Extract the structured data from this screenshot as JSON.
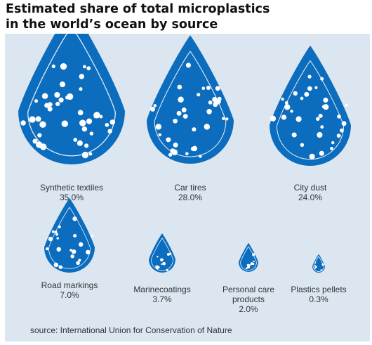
{
  "title_lines": [
    "Estimated share of total microplastics",
    "in the world’s ocean by source"
  ],
  "source": "source: International Union for Conservation of Nature",
  "colors": {
    "drop": "#0c6dbe",
    "panel": "#dbe6f1",
    "dots": "#ffffff",
    "text": "#333333"
  },
  "chart_data": {
    "type": "bubble",
    "mark_shape": "water-drop",
    "unit": "%",
    "series": [
      {
        "label": "Synthetic textiles",
        "label_lines": [
          "Synthetic textiles"
        ],
        "value": 35.0,
        "display": "35.0%"
      },
      {
        "label": "Car tires",
        "label_lines": [
          "Car tires"
        ],
        "value": 28.0,
        "display": "28.0%"
      },
      {
        "label": "City dust",
        "label_lines": [
          "City dust"
        ],
        "value": 24.0,
        "display": "24.0%"
      },
      {
        "label": "Road markings",
        "label_lines": [
          "Road markings"
        ],
        "value": 7.0,
        "display": "7.0%"
      },
      {
        "label": "Marinecoatings",
        "label_lines": [
          "Marinecoatings"
        ],
        "value": 3.7,
        "display": "3.7%"
      },
      {
        "label": "Personal care products",
        "label_lines": [
          "Personal care",
          "products"
        ],
        "value": 2.0,
        "display": "2.0%"
      },
      {
        "label": "Plastics pellets",
        "label_lines": [
          "Plastics pellets"
        ],
        "value": 0.3,
        "display": "0.3%"
      }
    ]
  }
}
